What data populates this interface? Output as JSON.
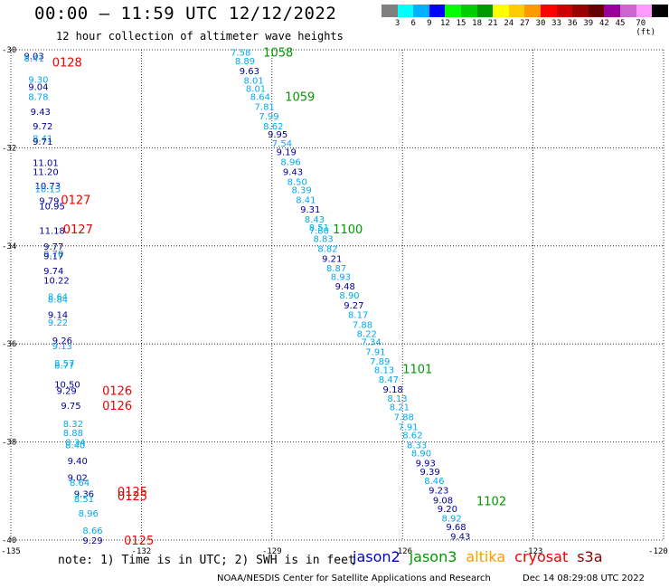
{
  "header": {
    "title": "00:00 – 11:59 UTC 12/12/2022",
    "subtitle": "12 hour collection of altimeter wave heights"
  },
  "colorbar": {
    "colors": [
      "#808080",
      "#00ffff",
      "#00b0ff",
      "#0000ff",
      "#00ff00",
      "#00cc00",
      "#009900",
      "#ffff00",
      "#ffcc00",
      "#ff9900",
      "#ff0000",
      "#cc0000",
      "#990000",
      "#660000",
      "#990099",
      "#cc66cc",
      "#ff99ff",
      "#000000"
    ],
    "labels": [
      "3",
      "6",
      "9",
      "12",
      "15",
      "18",
      "21",
      "24",
      "27",
      "30",
      "33",
      "36",
      "39",
      "42",
      "45",
      "70 (ft)"
    ]
  },
  "map": {
    "lat_range": [
      -40,
      -30
    ],
    "lon_range": [
      -135,
      -120
    ],
    "lat_labels": [
      "-30",
      "-32",
      "-34",
      "-36",
      "-38",
      "-40"
    ],
    "lon_labels": [
      "-135",
      "-132",
      "-129",
      "-126",
      "-123",
      "-120"
    ],
    "sat_colors": {
      "jason2": "#0000cc",
      "jason3": "#009900",
      "altika": "#ff9900",
      "cryosat": "#ee0000",
      "s3a": "#880000"
    },
    "passes": [
      {
        "time": "1058",
        "lon": -129.2,
        "lat": -30.05,
        "sat": "jason3"
      },
      {
        "time": "1059",
        "lon": -128.7,
        "lat": -30.95,
        "sat": "jason3"
      },
      {
        "time": "1100",
        "lon": -127.6,
        "lat": -33.65,
        "sat": "jason3"
      },
      {
        "time": "1101",
        "lon": -126.0,
        "lat": -36.5,
        "sat": "jason3"
      },
      {
        "time": "1102",
        "lon": -124.3,
        "lat": -39.2,
        "sat": "jason3"
      },
      {
        "time": "0128",
        "lon": -134.05,
        "lat": -30.25,
        "sat": "cryosat"
      },
      {
        "time": "0127",
        "lon": -133.85,
        "lat": -33.05,
        "sat": "cryosat"
      },
      {
        "time": "0127",
        "lon": -133.8,
        "lat": -33.65,
        "sat": "cryosat"
      },
      {
        "time": "0126",
        "lon": -132.9,
        "lat": -36.95,
        "sat": "cryosat"
      },
      {
        "time": "0126",
        "lon": -132.9,
        "lat": -37.25,
        "sat": "cryosat"
      },
      {
        "time": "0125",
        "lon": -132.55,
        "lat": -39.0,
        "sat": "cryosat"
      },
      {
        "time": "0125",
        "lon": -132.55,
        "lat": -39.1,
        "sat": "cryosat"
      },
      {
        "time": "0125",
        "lon": -132.4,
        "lat": -40.0,
        "sat": "cryosat"
      }
    ],
    "track_east": [
      {
        "v": "7.58",
        "lon": -129.95,
        "lat": -30.05,
        "c": "l"
      },
      {
        "v": "8.89",
        "lon": -129.85,
        "lat": -30.22,
        "c": "l"
      },
      {
        "v": "9.63",
        "lon": -129.75,
        "lat": -30.42,
        "c": "d"
      },
      {
        "v": "8.01",
        "lon": -129.65,
        "lat": -30.62,
        "c": "l"
      },
      {
        "v": "8.01",
        "lon": -129.6,
        "lat": -30.78,
        "c": "l"
      },
      {
        "v": "8.64",
        "lon": -129.5,
        "lat": -30.95,
        "c": "l"
      },
      {
        "v": "7.81",
        "lon": -129.4,
        "lat": -31.15,
        "c": "l"
      },
      {
        "v": "7.99",
        "lon": -129.3,
        "lat": -31.35,
        "c": "l"
      },
      {
        "v": "8.62",
        "lon": -129.2,
        "lat": -31.55,
        "c": "l"
      },
      {
        "v": "9.95",
        "lon": -129.1,
        "lat": -31.72,
        "c": "d"
      },
      {
        "v": "7.54",
        "lon": -129.0,
        "lat": -31.9,
        "c": "l"
      },
      {
        "v": "9.19",
        "lon": -128.9,
        "lat": -32.08,
        "c": "d"
      },
      {
        "v": "8.96",
        "lon": -128.8,
        "lat": -32.28,
        "c": "l"
      },
      {
        "v": "9.43",
        "lon": -128.75,
        "lat": -32.48,
        "c": "d"
      },
      {
        "v": "8.50",
        "lon": -128.65,
        "lat": -32.68,
        "c": "l"
      },
      {
        "v": "8.39",
        "lon": -128.55,
        "lat": -32.85,
        "c": "l"
      },
      {
        "v": "8.41",
        "lon": -128.45,
        "lat": -33.05,
        "c": "l"
      },
      {
        "v": "9.31",
        "lon": -128.35,
        "lat": -33.25,
        "c": "d"
      },
      {
        "v": "8.43",
        "lon": -128.25,
        "lat": -33.45,
        "c": "l"
      },
      {
        "v": "8.51",
        "lon": -128.15,
        "lat": -33.62,
        "c": "l"
      },
      {
        "v": "7.80",
        "lon": -128.15,
        "lat": -33.68,
        "c": "l"
      },
      {
        "v": "8.83",
        "lon": -128.05,
        "lat": -33.85,
        "c": "l"
      },
      {
        "v": "8.82",
        "lon": -127.95,
        "lat": -34.05,
        "c": "l"
      },
      {
        "v": "9.21",
        "lon": -127.85,
        "lat": -34.25,
        "c": "d"
      },
      {
        "v": "8.87",
        "lon": -127.75,
        "lat": -34.45,
        "c": "l"
      },
      {
        "v": "8.93",
        "lon": -127.65,
        "lat": -34.62,
        "c": "l"
      },
      {
        "v": "9.48",
        "lon": -127.55,
        "lat": -34.82,
        "c": "d"
      },
      {
        "v": "8.90",
        "lon": -127.45,
        "lat": -35.0,
        "c": "l"
      },
      {
        "v": "9.27",
        "lon": -127.35,
        "lat": -35.2,
        "c": "d"
      },
      {
        "v": "8.17",
        "lon": -127.25,
        "lat": -35.4,
        "c": "l"
      },
      {
        "v": "7.88",
        "lon": -127.15,
        "lat": -35.6,
        "c": "l"
      },
      {
        "v": "8.22",
        "lon": -127.05,
        "lat": -35.78,
        "c": "l"
      },
      {
        "v": "7.34",
        "lon": -126.95,
        "lat": -35.95,
        "c": "l"
      },
      {
        "v": "7.91",
        "lon": -126.85,
        "lat": -36.15,
        "c": "l"
      },
      {
        "v": "7.89",
        "lon": -126.75,
        "lat": -36.35,
        "c": "l"
      },
      {
        "v": "8.13",
        "lon": -126.65,
        "lat": -36.52,
        "c": "l"
      },
      {
        "v": "8.47",
        "lon": -126.55,
        "lat": -36.72,
        "c": "l"
      },
      {
        "v": "9.18",
        "lon": -126.45,
        "lat": -36.92,
        "c": "d"
      },
      {
        "v": "8.13",
        "lon": -126.35,
        "lat": -37.1,
        "c": "l"
      },
      {
        "v": "8.21",
        "lon": -126.3,
        "lat": -37.28,
        "c": "l"
      },
      {
        "v": "7.88",
        "lon": -126.2,
        "lat": -37.48,
        "c": "l"
      },
      {
        "v": "7.91",
        "lon": -126.1,
        "lat": -37.68,
        "c": "l"
      },
      {
        "v": "8.62",
        "lon": -126.0,
        "lat": -37.85,
        "c": "l"
      },
      {
        "v": "8.33",
        "lon": -125.9,
        "lat": -38.05,
        "c": "l"
      },
      {
        "v": "8.90",
        "lon": -125.8,
        "lat": -38.22,
        "c": "l"
      },
      {
        "v": "9.93",
        "lon": -125.7,
        "lat": -38.42,
        "c": "d"
      },
      {
        "v": "9.39",
        "lon": -125.6,
        "lat": -38.6,
        "c": "d"
      },
      {
        "v": "8.46",
        "lon": -125.5,
        "lat": -38.78,
        "c": "l"
      },
      {
        "v": "9.23",
        "lon": -125.4,
        "lat": -38.98,
        "c": "d"
      },
      {
        "v": "9.08",
        "lon": -125.3,
        "lat": -39.18,
        "c": "d"
      },
      {
        "v": "9.20",
        "lon": -125.2,
        "lat": -39.35,
        "c": "d"
      },
      {
        "v": "8.92",
        "lon": -125.1,
        "lat": -39.55,
        "c": "l"
      },
      {
        "v": "9.68",
        "lon": -125.0,
        "lat": -39.72,
        "c": "d"
      },
      {
        "v": "9.43",
        "lon": -124.9,
        "lat": -39.92,
        "c": "d"
      }
    ],
    "track_west": [
      {
        "v": "9.03",
        "lon": -134.7,
        "lat": -30.12,
        "c": "d"
      },
      {
        "v": "8.41",
        "lon": -134.7,
        "lat": -30.17,
        "c": "l"
      },
      {
        "v": "9.30",
        "lon": -134.6,
        "lat": -30.6,
        "c": "l"
      },
      {
        "v": "9.04",
        "lon": -134.6,
        "lat": -30.75,
        "c": "d"
      },
      {
        "v": "8.78",
        "lon": -134.6,
        "lat": -30.95,
        "c": "l"
      },
      {
        "v": "9.43",
        "lon": -134.55,
        "lat": -31.25,
        "c": "d"
      },
      {
        "v": "9.72",
        "lon": -134.5,
        "lat": -31.55,
        "c": "d"
      },
      {
        "v": "8.41",
        "lon": -134.5,
        "lat": -31.8,
        "c": "l"
      },
      {
        "v": "9.71",
        "lon": -134.5,
        "lat": -31.86,
        "c": "d"
      },
      {
        "v": "11.01",
        "lon": -134.5,
        "lat": -32.3,
        "c": "d"
      },
      {
        "v": "11.20",
        "lon": -134.5,
        "lat": -32.48,
        "c": "d"
      },
      {
        "v": "10.73",
        "lon": -134.45,
        "lat": -32.77,
        "c": "d"
      },
      {
        "v": "10.13",
        "lon": -134.45,
        "lat": -32.83,
        "c": "l"
      },
      {
        "v": "9.79",
        "lon": -134.35,
        "lat": -33.07,
        "c": "d"
      },
      {
        "v": "10.95",
        "lon": -134.35,
        "lat": -33.18,
        "c": "d"
      },
      {
        "v": "11.18",
        "lon": -134.35,
        "lat": -33.68,
        "c": "d"
      },
      {
        "v": "9.77",
        "lon": -134.25,
        "lat": -34.0,
        "c": "d"
      },
      {
        "v": "9.70",
        "lon": -134.25,
        "lat": -34.15,
        "c": "l"
      },
      {
        "v": "9.17",
        "lon": -134.25,
        "lat": -34.2,
        "c": "d"
      },
      {
        "v": "9.74",
        "lon": -134.25,
        "lat": -34.5,
        "c": "d"
      },
      {
        "v": "10.22",
        "lon": -134.25,
        "lat": -34.7,
        "c": "d"
      },
      {
        "v": "8.64",
        "lon": -134.15,
        "lat": -35.03,
        "c": "l"
      },
      {
        "v": "8.84",
        "lon": -134.15,
        "lat": -35.08,
        "c": "l"
      },
      {
        "v": "9.14",
        "lon": -134.15,
        "lat": -35.4,
        "c": "d"
      },
      {
        "v": "9.22",
        "lon": -134.15,
        "lat": -35.55,
        "c": "l"
      },
      {
        "v": "9.26",
        "lon": -134.05,
        "lat": -35.92,
        "c": "d"
      },
      {
        "v": "9.13",
        "lon": -134.05,
        "lat": -36.03,
        "c": "l"
      },
      {
        "v": "8.57",
        "lon": -134.0,
        "lat": -36.38,
        "c": "l"
      },
      {
        "v": "8.77",
        "lon": -134.0,
        "lat": -36.43,
        "c": "l"
      },
      {
        "v": "10.50",
        "lon": -134.0,
        "lat": -36.82,
        "c": "d"
      },
      {
        "v": "9.29",
        "lon": -133.95,
        "lat": -36.95,
        "c": "d"
      },
      {
        "v": "9.75",
        "lon": -133.85,
        "lat": -37.25,
        "c": "d"
      },
      {
        "v": "8.32",
        "lon": -133.8,
        "lat": -37.62,
        "c": "l"
      },
      {
        "v": "8.88",
        "lon": -133.8,
        "lat": -37.8,
        "c": "l"
      },
      {
        "v": "8.34",
        "lon": -133.75,
        "lat": -38.0,
        "c": "l"
      },
      {
        "v": "8.40",
        "lon": -133.75,
        "lat": -38.05,
        "c": "l"
      },
      {
        "v": "9.40",
        "lon": -133.7,
        "lat": -38.38,
        "c": "d"
      },
      {
        "v": "9.02",
        "lon": -133.7,
        "lat": -38.72,
        "c": "d"
      },
      {
        "v": "8.64",
        "lon": -133.65,
        "lat": -38.82,
        "c": "l"
      },
      {
        "v": "9.36",
        "lon": -133.55,
        "lat": -39.05,
        "c": "d"
      },
      {
        "v": "8.51",
        "lon": -133.55,
        "lat": -39.15,
        "c": "l"
      },
      {
        "v": "8.96",
        "lon": -133.45,
        "lat": -39.45,
        "c": "l"
      },
      {
        "v": "8.66",
        "lon": -133.35,
        "lat": -39.8,
        "c": "l"
      },
      {
        "v": "9.29",
        "lon": -133.35,
        "lat": -40.0,
        "c": "d"
      }
    ]
  },
  "footer": {
    "note": "note: 1) Time is in UTC; 2) SWH is in feet",
    "legend": [
      {
        "label": "jason2",
        "color": "#0000cc"
      },
      {
        "label": "jason3",
        "color": "#009900"
      },
      {
        "label": "altika",
        "color": "#ff9900"
      },
      {
        "label": "cryosat",
        "color": "#ee0000"
      },
      {
        "label": "s3a",
        "color": "#880000"
      }
    ],
    "credit": "NOAA/NESDIS Center for Satellite Applications and Research",
    "timestamp": "Dec 14 08:29:08 UTC 2022"
  }
}
